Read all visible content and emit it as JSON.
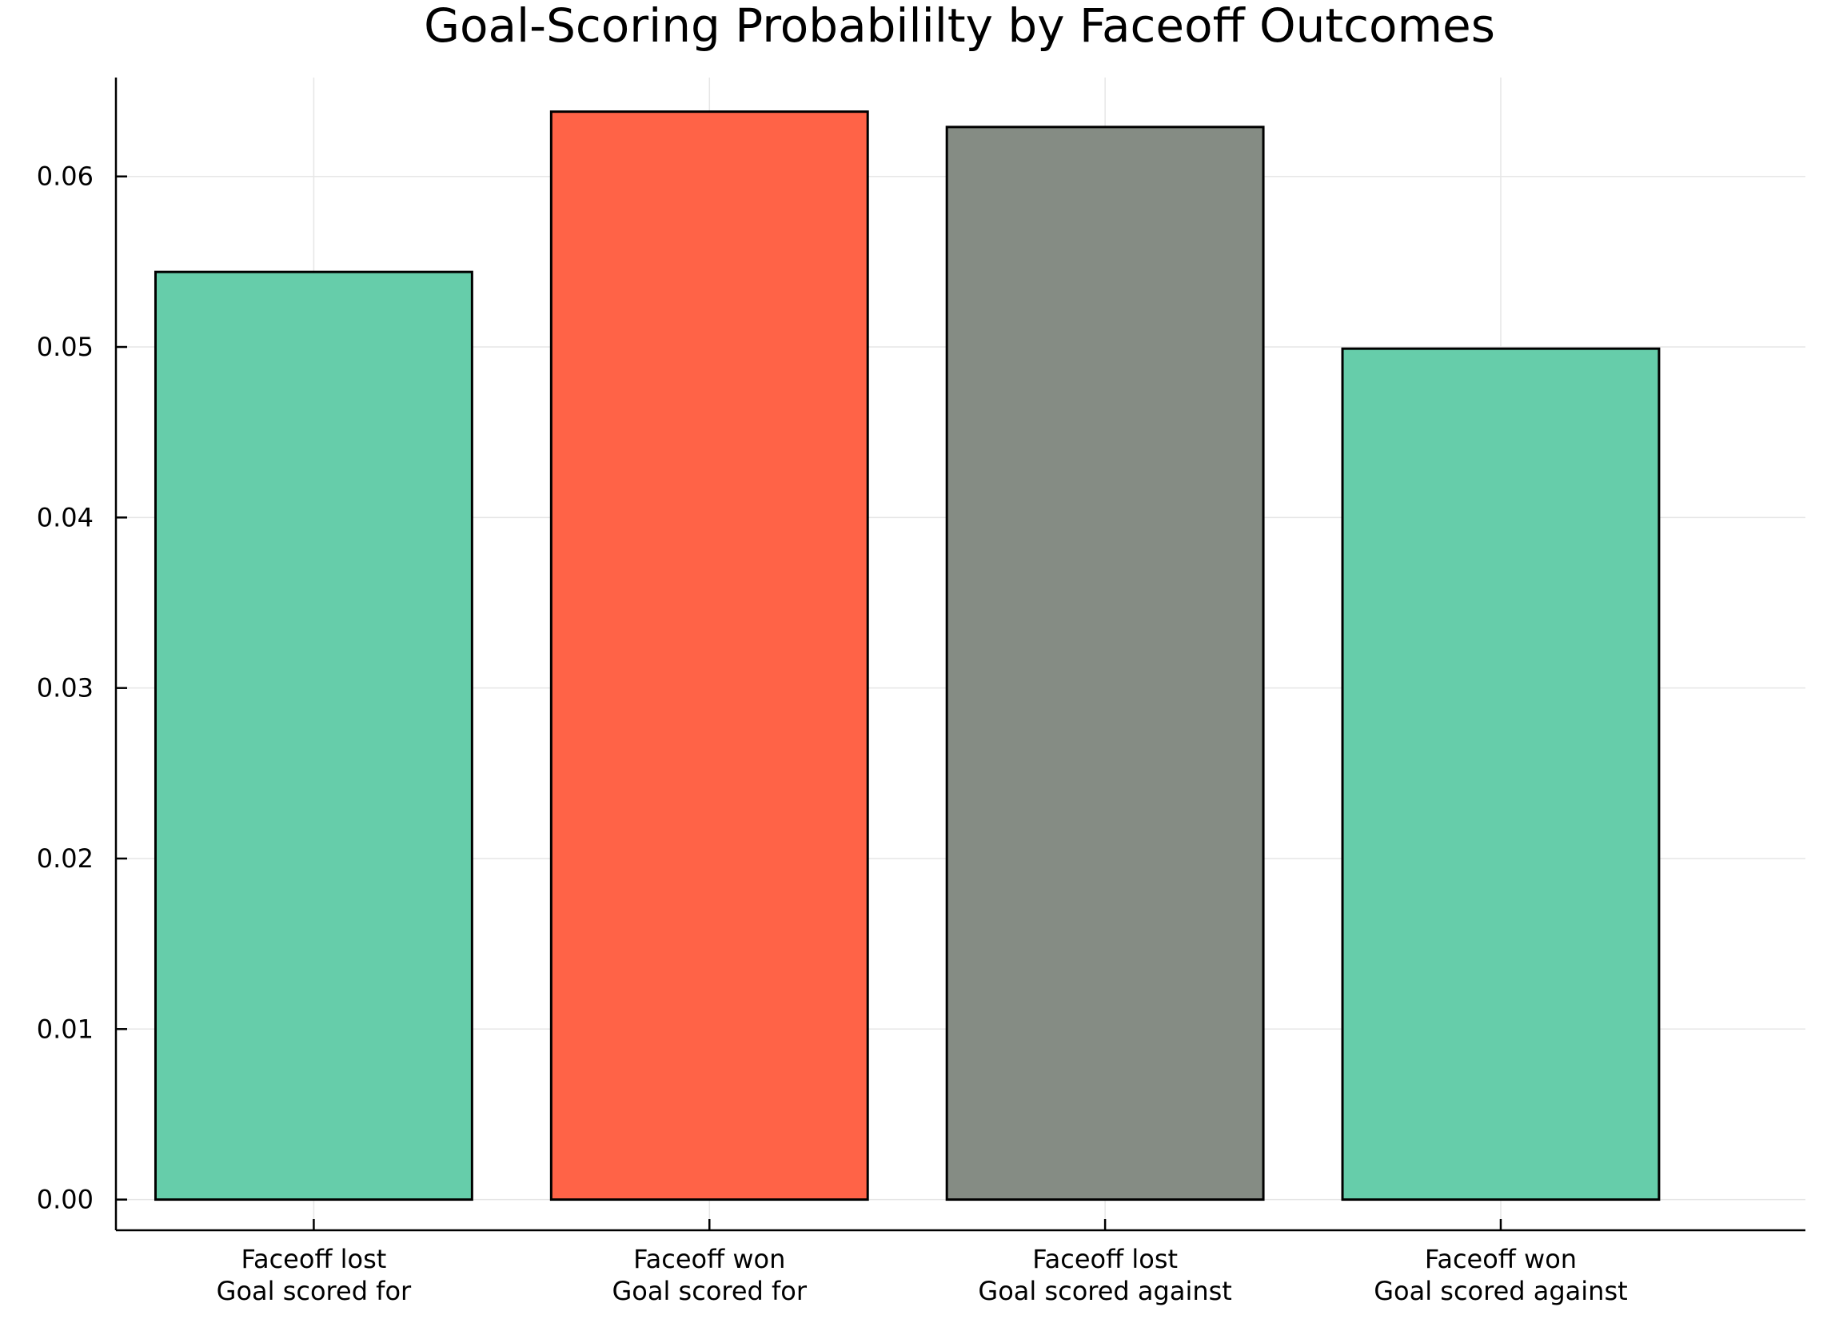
{
  "chart_data": {
    "type": "bar",
    "title": "Goal-Scoring Probabililty by Faceoff Outcomes",
    "xlabel": "",
    "ylabel": "",
    "categories": [
      [
        "Faceoff lost",
        "Goal scored for"
      ],
      [
        "Faceoff won",
        "Goal scored for"
      ],
      [
        "Faceoff lost",
        "Goal scored against"
      ],
      [
        "Faceoff won",
        "Goal scored against"
      ]
    ],
    "values": [
      0.0544,
      0.0638,
      0.0629,
      0.0499
    ],
    "colors": [
      "#66cdaa",
      "#ff6347",
      "#858c84",
      "#66cdaa"
    ],
    "ylim": [
      -0.0018,
      0.0658
    ],
    "yticks": [
      0.0,
      0.01,
      0.02,
      0.03,
      0.04,
      0.05,
      0.06
    ],
    "ytick_labels": [
      "0.00",
      "0.01",
      "0.02",
      "0.03",
      "0.04",
      "0.05",
      "0.06"
    ],
    "grid": true,
    "legend": "none"
  }
}
